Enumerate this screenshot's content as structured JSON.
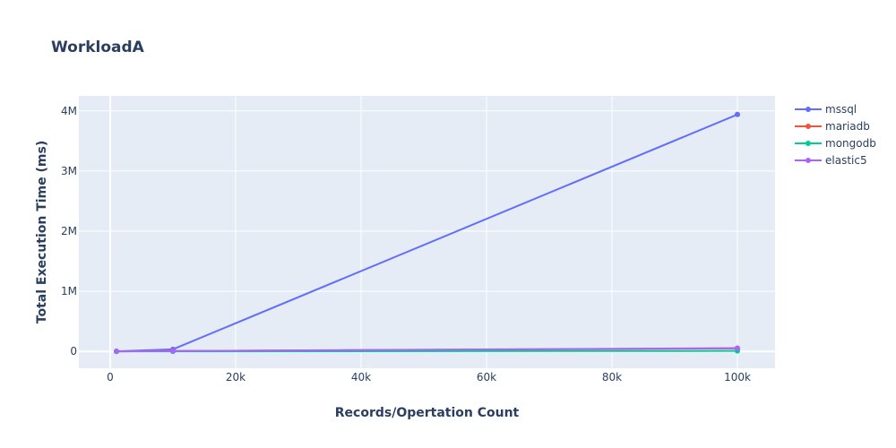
{
  "chart_data": {
    "type": "line",
    "title": "WorkloadA",
    "xlabel": "Records/Opertation Count",
    "ylabel": "Total Execution Time (ms)",
    "x": [
      1000,
      10000,
      100000
    ],
    "xlim": [
      -5000,
      106000
    ],
    "ylim": [
      -280000,
      4250000
    ],
    "x_ticks": [
      0,
      20000,
      40000,
      60000,
      80000,
      100000
    ],
    "x_tick_labels": [
      "0",
      "20k",
      "40k",
      "60k",
      "80k",
      "100k"
    ],
    "y_ticks": [
      0,
      1000000,
      2000000,
      3000000,
      4000000
    ],
    "y_tick_labels": [
      "0",
      "1M",
      "2M",
      "3M",
      "4M"
    ],
    "grid": true,
    "legend_position": "right",
    "plot_bgcolor": "#e5ecf6",
    "series": [
      {
        "name": "mssql",
        "color": "#636efa",
        "values": [
          2000,
          35000,
          3940000
        ]
      },
      {
        "name": "mariadb",
        "color": "#ef553b",
        "values": [
          1500,
          6000,
          50000
        ]
      },
      {
        "name": "mongodb",
        "color": "#00cc96",
        "values": [
          500,
          1500,
          8000
        ]
      },
      {
        "name": "elastic5",
        "color": "#ab63fa",
        "values": [
          1800,
          6500,
          55000
        ]
      }
    ]
  }
}
